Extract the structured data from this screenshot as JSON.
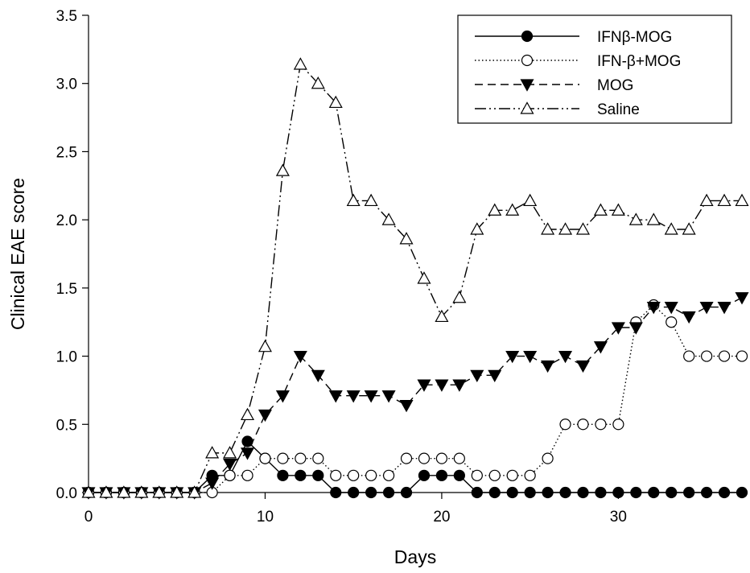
{
  "chart_data": {
    "type": "line",
    "title": "",
    "xlabel": "Days",
    "ylabel": "Clinical EAE score",
    "xlim": [
      0,
      37
    ],
    "ylim": [
      0,
      3.5
    ],
    "xticks": [
      "0",
      "10",
      "20",
      "30"
    ],
    "yticks": [
      "0.0",
      "0.5",
      "1.0",
      "1.5",
      "2.0",
      "2.5",
      "3.0",
      "3.5"
    ],
    "grid": false,
    "legend_position": "top-right",
    "series": [
      {
        "name": "IFNβ-MOG",
        "marker": "filled-circle",
        "line": "solid",
        "points": [
          [
            0,
            0
          ],
          [
            1,
            0
          ],
          [
            2,
            0
          ],
          [
            3,
            0
          ],
          [
            4,
            0
          ],
          [
            5,
            0
          ],
          [
            6,
            0
          ],
          [
            7,
            0.125
          ],
          [
            8,
            0.125
          ],
          [
            9,
            0.375
          ],
          [
            10,
            0.25
          ],
          [
            11,
            0.125
          ],
          [
            12,
            0.125
          ],
          [
            13,
            0.125
          ],
          [
            14,
            0
          ],
          [
            15,
            0
          ],
          [
            16,
            0
          ],
          [
            17,
            0
          ],
          [
            18,
            0
          ],
          [
            19,
            0.125
          ],
          [
            20,
            0.125
          ],
          [
            21,
            0.125
          ],
          [
            22,
            0
          ],
          [
            23,
            0
          ],
          [
            24,
            0
          ],
          [
            25,
            0
          ],
          [
            26,
            0
          ],
          [
            27,
            0
          ],
          [
            28,
            0
          ],
          [
            29,
            0
          ],
          [
            30,
            0
          ],
          [
            31,
            0
          ],
          [
            32,
            0
          ],
          [
            33,
            0
          ],
          [
            34,
            0
          ],
          [
            35,
            0
          ],
          [
            36,
            0
          ],
          [
            37,
            0
          ]
        ]
      },
      {
        "name": "IFN-β+MOG",
        "marker": "open-circle",
        "line": "dotted",
        "points": [
          [
            0,
            0
          ],
          [
            1,
            0
          ],
          [
            2,
            0
          ],
          [
            3,
            0
          ],
          [
            4,
            0
          ],
          [
            5,
            0
          ],
          [
            6,
            0
          ],
          [
            7,
            0
          ],
          [
            8,
            0.125
          ],
          [
            9,
            0.125
          ],
          [
            10,
            0.25
          ],
          [
            11,
            0.25
          ],
          [
            12,
            0.25
          ],
          [
            13,
            0.25
          ],
          [
            14,
            0.125
          ],
          [
            15,
            0.125
          ],
          [
            16,
            0.125
          ],
          [
            17,
            0.125
          ],
          [
            18,
            0.25
          ],
          [
            19,
            0.25
          ],
          [
            20,
            0.25
          ],
          [
            21,
            0.25
          ],
          [
            22,
            0.125
          ],
          [
            23,
            0.125
          ],
          [
            24,
            0.125
          ],
          [
            25,
            0.125
          ],
          [
            26,
            0.25
          ],
          [
            27,
            0.5
          ],
          [
            28,
            0.5
          ],
          [
            29,
            0.5
          ],
          [
            30,
            0.5
          ],
          [
            31,
            1.25
          ],
          [
            32,
            1.375
          ],
          [
            33,
            1.25
          ],
          [
            34,
            1.0
          ],
          [
            35,
            1.0
          ],
          [
            36,
            1.0
          ],
          [
            37,
            1.0
          ]
        ]
      },
      {
        "name": "MOG",
        "marker": "filled-triangle-down",
        "line": "dashed",
        "points": [
          [
            0,
            0
          ],
          [
            1,
            0
          ],
          [
            2,
            0
          ],
          [
            3,
            0
          ],
          [
            4,
            0
          ],
          [
            5,
            0
          ],
          [
            6,
            0
          ],
          [
            7,
            0.07
          ],
          [
            8,
            0.21
          ],
          [
            9,
            0.29
          ],
          [
            10,
            0.57
          ],
          [
            11,
            0.71
          ],
          [
            12,
            1.0
          ],
          [
            13,
            0.86
          ],
          [
            14,
            0.71
          ],
          [
            15,
            0.71
          ],
          [
            16,
            0.71
          ],
          [
            17,
            0.71
          ],
          [
            18,
            0.64
          ],
          [
            19,
            0.79
          ],
          [
            20,
            0.79
          ],
          [
            21,
            0.79
          ],
          [
            22,
            0.86
          ],
          [
            23,
            0.86
          ],
          [
            24,
            1.0
          ],
          [
            25,
            1.0
          ],
          [
            26,
            0.93
          ],
          [
            27,
            1.0
          ],
          [
            28,
            0.93
          ],
          [
            29,
            1.07
          ],
          [
            30,
            1.21
          ],
          [
            31,
            1.21
          ],
          [
            32,
            1.36
          ],
          [
            33,
            1.36
          ],
          [
            34,
            1.29
          ],
          [
            35,
            1.36
          ],
          [
            36,
            1.36
          ],
          [
            37,
            1.43
          ]
        ]
      },
      {
        "name": "Saline",
        "marker": "open-triangle-up",
        "line": "dash-dot-dot",
        "points": [
          [
            0,
            0
          ],
          [
            1,
            0
          ],
          [
            2,
            0
          ],
          [
            3,
            0
          ],
          [
            4,
            0
          ],
          [
            5,
            0
          ],
          [
            6,
            0
          ],
          [
            7,
            0.29
          ],
          [
            8,
            0.29
          ],
          [
            9,
            0.57
          ],
          [
            10,
            1.07
          ],
          [
            11,
            2.36
          ],
          [
            12,
            3.14
          ],
          [
            13,
            3.0
          ],
          [
            14,
            2.86
          ],
          [
            15,
            2.14
          ],
          [
            16,
            2.14
          ],
          [
            17,
            2.0
          ],
          [
            18,
            1.86
          ],
          [
            19,
            1.57
          ],
          [
            20,
            1.29
          ],
          [
            21,
            1.43
          ],
          [
            22,
            1.93
          ],
          [
            23,
            2.07
          ],
          [
            24,
            2.07
          ],
          [
            25,
            2.14
          ],
          [
            26,
            1.93
          ],
          [
            27,
            1.93
          ],
          [
            28,
            1.93
          ],
          [
            29,
            2.07
          ],
          [
            30,
            2.07
          ],
          [
            31,
            2.0
          ],
          [
            32,
            2.0
          ],
          [
            33,
            1.93
          ],
          [
            34,
            1.93
          ],
          [
            35,
            2.14
          ],
          [
            36,
            2.14
          ],
          [
            37,
            2.14
          ]
        ]
      }
    ]
  }
}
